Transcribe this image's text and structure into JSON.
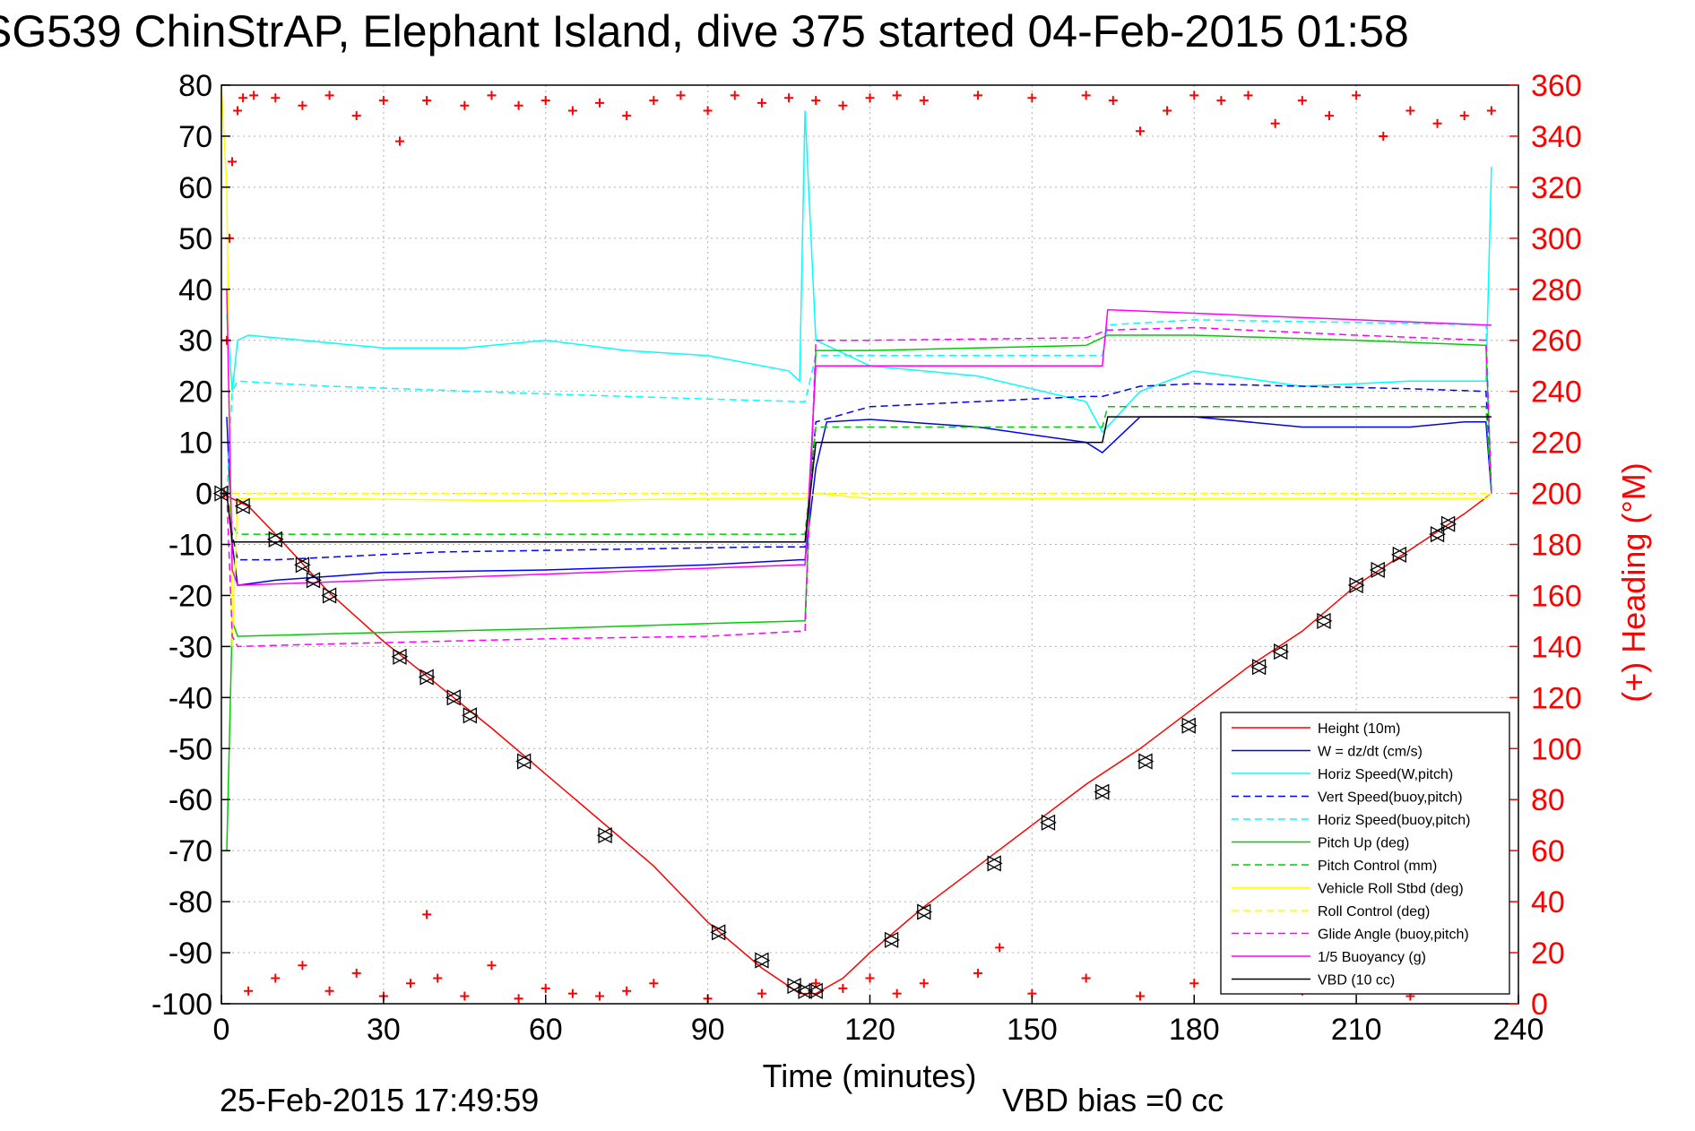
{
  "chart_data": {
    "type": "line",
    "title": "SG539 ChinStrAP, Elephant Island, dive 375 started 04-Feb-2015 01:58",
    "xlabel": "Time (minutes)",
    "ylabel": "",
    "y2label": "(+) Heading (°M)",
    "xlim": [
      0,
      240
    ],
    "ylim": [
      -100,
      80
    ],
    "y2lim": [
      0,
      360
    ],
    "xticks": [
      "0",
      "30",
      "60",
      "90",
      "120",
      "150",
      "180",
      "210",
      "240"
    ],
    "yticks": [
      "80",
      "70",
      "60",
      "50",
      "40",
      "30",
      "20",
      "10",
      "0",
      "-10",
      "-20",
      "-30",
      "-40",
      "-50",
      "-60",
      "-70",
      "-80",
      "-90",
      "-100"
    ],
    "y2ticks": [
      "360",
      "340",
      "320",
      "300",
      "280",
      "260",
      "240",
      "220",
      "200",
      "180",
      "160",
      "140",
      "120",
      "100",
      "80",
      "60",
      "40",
      "20",
      "0"
    ],
    "grid": true,
    "legend_position": "bottom-right",
    "footer_left": "25-Feb-2015 17:49:59",
    "footer_right": "VBD bias =0 cc",
    "series": [
      {
        "name": "Height (10m)",
        "color": "#ff0000",
        "dash": "solid",
        "x": [
          0,
          5,
          10,
          20,
          30,
          40,
          50,
          60,
          70,
          80,
          90,
          100,
          107,
          110,
          115,
          120,
          130,
          140,
          150,
          160,
          170,
          180,
          190,
          200,
          210,
          220,
          230,
          235
        ],
        "y": [
          0,
          -2.5,
          -8,
          -19.5,
          -29,
          -37.5,
          -46,
          -55,
          -64,
          -73,
          -84,
          -93,
          -98,
          -98,
          -95,
          -90,
          -81,
          -73,
          -65,
          -57,
          -50,
          -42,
          -34,
          -27,
          -18,
          -11,
          -4,
          0
        ]
      },
      {
        "name": "W = dz/dt (cm/s)",
        "color": "#0000ff",
        "dash": "solid",
        "x": [
          1,
          2,
          3,
          10,
          30,
          60,
          90,
          107,
          108,
          110,
          112,
          120,
          140,
          160,
          163,
          170,
          180,
          200,
          220,
          230,
          234,
          235
        ],
        "y": [
          15,
          -10,
          -18,
          -17,
          -15.5,
          -15,
          -14,
          -13,
          -13,
          5,
          14,
          14.5,
          13,
          10,
          8,
          15,
          15,
          13,
          13,
          14,
          14,
          0
        ]
      },
      {
        "name": "Horiz Speed(W,pitch)",
        "color": "#00ffff",
        "dash": "solid",
        "x": [
          1,
          2,
          3,
          5,
          15,
          30,
          45,
          60,
          75,
          90,
          100,
          105,
          107,
          108,
          110,
          120,
          140,
          160,
          163,
          170,
          180,
          200,
          220,
          234,
          235
        ],
        "y": [
          35,
          20,
          30,
          31,
          30,
          28.5,
          28.5,
          30,
          28,
          27,
          25,
          24,
          22,
          75,
          30,
          25,
          23,
          18,
          12,
          20,
          24,
          21,
          22,
          22,
          64
        ]
      },
      {
        "name": "Vert Speed(buoy,pitch)",
        "color": "#0000ff",
        "dash": "dashed",
        "x": [
          1,
          2,
          3,
          10,
          40,
          70,
          100,
          107,
          108,
          110,
          120,
          140,
          160,
          163,
          170,
          180,
          200,
          220,
          234,
          235
        ],
        "y": [
          0,
          -8,
          -13,
          -13,
          -11.5,
          -11,
          -10.5,
          -10.5,
          -10.5,
          14,
          17,
          18,
          19,
          19,
          21,
          21.5,
          21,
          20.5,
          20,
          0
        ]
      },
      {
        "name": "Horiz Speed(buoy,pitch)",
        "color": "#00ffff",
        "dash": "dashed",
        "x": [
          1,
          2,
          3,
          20,
          60,
          90,
          107,
          108,
          110,
          120,
          163,
          164,
          180,
          210,
          234,
          235
        ],
        "y": [
          0,
          20,
          22,
          21,
          19.5,
          18.5,
          18,
          18,
          27,
          27,
          27,
          33,
          34,
          33.5,
          33,
          0
        ]
      },
      {
        "name": "Pitch Up (deg)",
        "color": "#00cc00",
        "dash": "solid",
        "x": [
          1,
          2,
          3,
          20,
          60,
          90,
          107,
          108,
          110,
          120,
          160,
          164,
          180,
          210,
          234,
          235
        ],
        "y": [
          -70,
          -25,
          -28,
          -27.5,
          -26.5,
          -25.5,
          -25,
          -25,
          28,
          28,
          29,
          31,
          31,
          30,
          29,
          0
        ]
      },
      {
        "name": "Pitch Control (mm)",
        "color": "#00cc00",
        "dash": "dashed",
        "x": [
          1,
          2,
          3,
          60,
          107,
          108,
          110,
          120,
          163,
          164,
          234,
          235
        ],
        "y": [
          0,
          -6,
          -8,
          -8,
          -8,
          -8,
          13,
          13,
          13,
          17,
          17,
          0
        ]
      },
      {
        "name": "Vehicle Roll Stbd (deg)",
        "color": "#ffff00",
        "dash": "solid",
        "x": [
          0,
          1,
          2,
          3,
          20,
          60,
          90,
          107,
          108,
          110,
          120,
          160,
          200,
          234,
          235
        ],
        "y": [
          80,
          60,
          -30,
          -1,
          -1,
          -1.5,
          -1,
          -1,
          -1,
          0,
          -1,
          -1,
          -1,
          -1,
          0
        ]
      },
      {
        "name": "Roll Control (deg)",
        "color": "#ffff00",
        "dash": "dashed",
        "x": [
          0,
          2,
          3,
          60,
          107,
          108,
          110,
          160,
          234,
          235
        ],
        "y": [
          0,
          0,
          0,
          0,
          0,
          0,
          0,
          0,
          0,
          0
        ]
      },
      {
        "name": "Glide Angle (buoy,pitch)",
        "color": "#ff00ff",
        "dash": "dashed",
        "x": [
          1,
          2,
          3,
          20,
          60,
          90,
          107,
          108,
          110,
          120,
          160,
          164,
          180,
          210,
          234,
          235
        ],
        "y": [
          0,
          -28,
          -30,
          -29.5,
          -28.5,
          -28,
          -27,
          -27,
          30,
          30,
          30.5,
          32,
          32.5,
          31,
          30,
          0
        ]
      },
      {
        "name": "1/5 Buoyancy (g)",
        "color": "#ff00ff",
        "dash": "solid",
        "x": [
          1,
          2,
          3,
          107,
          108,
          110,
          163,
          164,
          234,
          235
        ],
        "y": [
          40,
          -15,
          -18,
          -14,
          -14,
          25,
          25,
          36,
          33,
          33
        ]
      },
      {
        "name": "VBD (10 cc)",
        "color": "#000000",
        "dash": "solid",
        "x": [
          1,
          2,
          3,
          107,
          108,
          110,
          163,
          164,
          234,
          235
        ],
        "y": [
          0,
          -9.5,
          -9.5,
          -9.5,
          -9.5,
          10,
          10,
          15,
          15,
          15
        ]
      }
    ],
    "heading": {
      "name": "(+) Heading",
      "color": "#ff0000",
      "axis": "right",
      "x": [
        0.5,
        1,
        1.5,
        2,
        3,
        4,
        6,
        10,
        15,
        20,
        25,
        30,
        33,
        38,
        45,
        50,
        55,
        60,
        65,
        70,
        75,
        80,
        85,
        90,
        95,
        100,
        105,
        110,
        115,
        120,
        125,
        130,
        140,
        150,
        160,
        165,
        170,
        175,
        180,
        185,
        190,
        195,
        200,
        205,
        210,
        215,
        220,
        225,
        230,
        235
      ],
      "y": [
        200,
        260,
        300,
        330,
        350,
        355,
        356,
        355,
        352,
        356,
        348,
        354,
        338,
        354,
        352,
        356,
        352,
        354,
        350,
        353,
        348,
        354,
        356,
        350,
        356,
        353,
        355,
        354,
        352,
        355,
        356,
        354,
        356,
        355,
        356,
        354,
        342,
        350,
        356,
        354,
        356,
        345,
        354,
        348,
        356,
        340,
        350,
        345,
        348,
        350
      ]
    },
    "heading_low": {
      "x": [
        5,
        10,
        15,
        20,
        25,
        30,
        35,
        38,
        40,
        45,
        50,
        55,
        60,
        65,
        70,
        75,
        80,
        90,
        100,
        110,
        115,
        120,
        125,
        130,
        140,
        144,
        150,
        160,
        170,
        180,
        190,
        200,
        210,
        220,
        230
      ],
      "y": [
        5,
        10,
        15,
        5,
        12,
        3,
        8,
        35,
        10,
        3,
        15,
        2,
        6,
        4,
        3,
        5,
        8,
        2,
        4,
        8,
        6,
        10,
        4,
        8,
        12,
        22,
        4,
        10,
        3,
        8,
        12,
        5,
        8,
        3,
        6
      ]
    },
    "depth_markers": {
      "x": [
        0,
        4,
        10,
        15,
        17,
        20,
        33,
        38,
        43,
        46,
        56,
        71,
        92,
        100,
        106,
        108,
        110,
        124,
        130,
        143,
        153,
        163,
        171,
        179,
        192,
        196,
        204,
        210,
        214,
        218,
        225,
        227
      ],
      "y": [
        0,
        -2.5,
        -9,
        -14,
        -17,
        -20,
        -32,
        -36,
        -40,
        -43.5,
        -52.5,
        -67,
        -86,
        -91.5,
        -96.5,
        -97.5,
        -97.5,
        -87.5,
        -82,
        -72.5,
        -64.5,
        -58.5,
        -52.5,
        -45.5,
        -34,
        -31,
        -25,
        -18,
        -15,
        -12,
        -8,
        -6
      ]
    }
  }
}
